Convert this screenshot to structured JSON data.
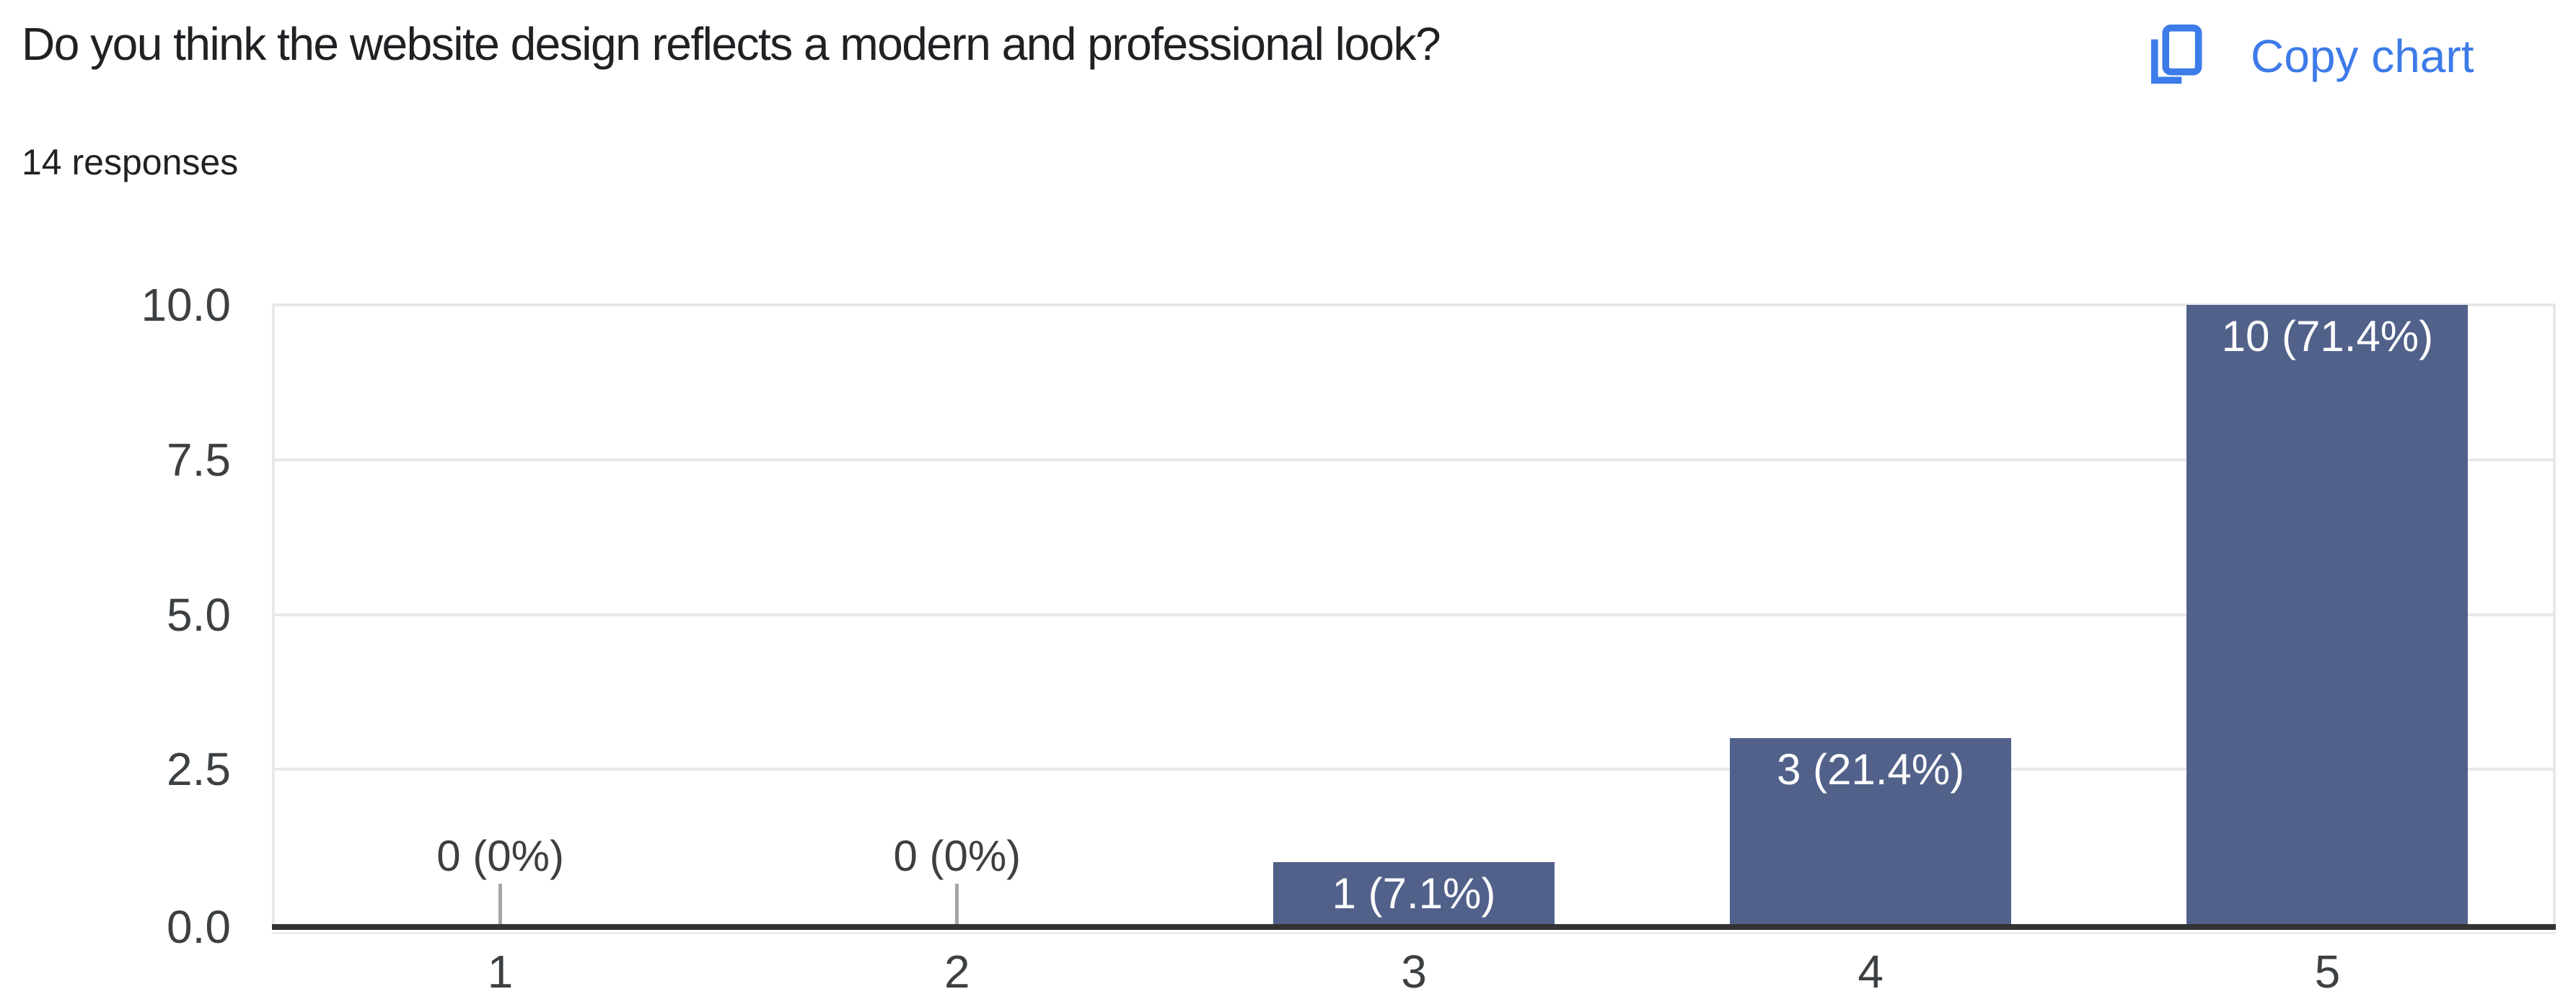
{
  "header": {
    "title": "Do you think the website design reflects a modern and professional look?",
    "responses_count": "14 responses",
    "copy_chart": {
      "label": "Copy chart",
      "icon": "copy-icon"
    }
  },
  "chart_data": {
    "type": "bar",
    "title": "Do you think the website design reflects a modern and professional look?",
    "subtitle": "14 responses",
    "categories": [
      "1",
      "2",
      "3",
      "4",
      "5"
    ],
    "values": [
      0,
      0,
      1,
      3,
      10
    ],
    "bar_labels": [
      "0 (0%)",
      "0 (0%)",
      "1 (7.1%)",
      "3 (21.4%)",
      "10 (71.4%)"
    ],
    "total_responses": 14,
    "xlabel": "",
    "ylabel": "",
    "yticks": [
      0,
      2.5,
      5,
      7.5,
      10
    ],
    "ytick_labels": [
      "0.0",
      "2.5",
      "5.0",
      "7.5",
      "10.0"
    ],
    "ylim": [
      0,
      10
    ],
    "grid": true,
    "legend": "none"
  },
  "colors": {
    "accent_blue": "#3d7be8",
    "bar_fill": "#51618a",
    "bar_label_text": "#ffffff",
    "axis_text": "#3c4043",
    "title_text": "#202124",
    "gridline": "#e8e8e8",
    "baseline": "#333333",
    "zero_tick": "#a6a6a6",
    "background": "#ffffff"
  }
}
